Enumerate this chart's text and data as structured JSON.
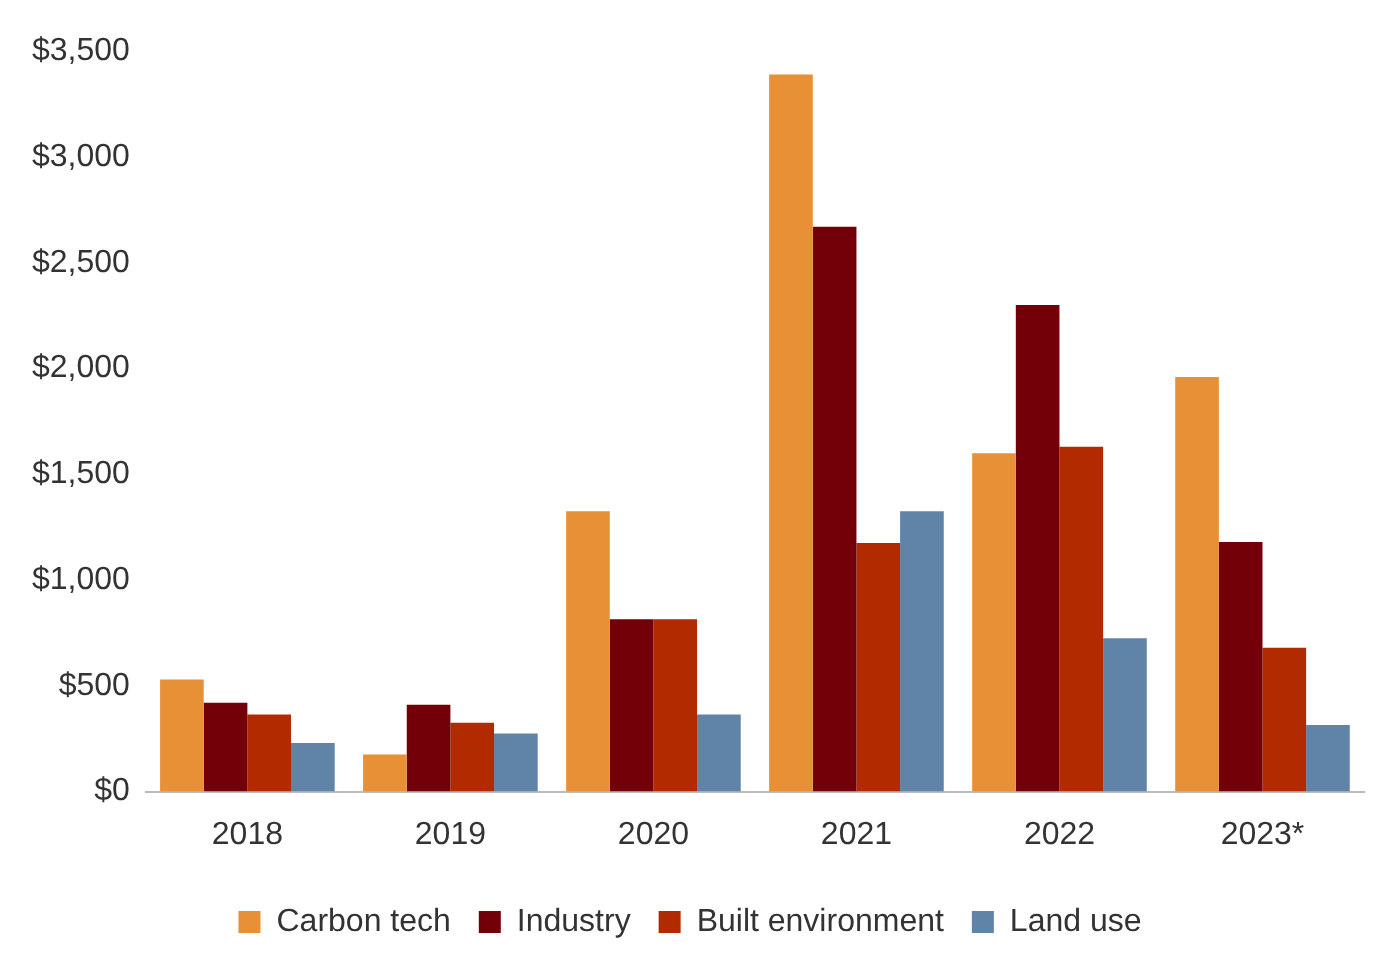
{
  "chart_data": {
    "type": "bar",
    "categories": [
      "2018",
      "2019",
      "2020",
      "2021",
      "2022",
      "2023*"
    ],
    "series": [
      {
        "name": "Carbon tech",
        "color": "#e89035",
        "values": [
          530,
          175,
          1325,
          3390,
          1600,
          1960
        ]
      },
      {
        "name": "Industry",
        "color": "#730009",
        "values": [
          420,
          410,
          815,
          2670,
          2300,
          1180
        ]
      },
      {
        "name": "Built environment",
        "color": "#b22a00",
        "values": [
          365,
          325,
          815,
          1175,
          1630,
          680
        ]
      },
      {
        "name": "Land use",
        "color": "#6084a8",
        "values": [
          230,
          275,
          365,
          1325,
          725,
          315
        ]
      }
    ],
    "ylim": [
      0,
      3500
    ],
    "yticks": [
      {
        "value": 0,
        "label": "$0"
      },
      {
        "value": 500,
        "label": "$500"
      },
      {
        "value": 1000,
        "label": "$1,000"
      },
      {
        "value": 1500,
        "label": "$1,500"
      },
      {
        "value": 2000,
        "label": "$2,000"
      },
      {
        "value": 2500,
        "label": "$2,500"
      },
      {
        "value": 3000,
        "label": "$3,000"
      },
      {
        "value": 3500,
        "label": "$3,500"
      }
    ],
    "grid": false,
    "legend": "bottom"
  }
}
